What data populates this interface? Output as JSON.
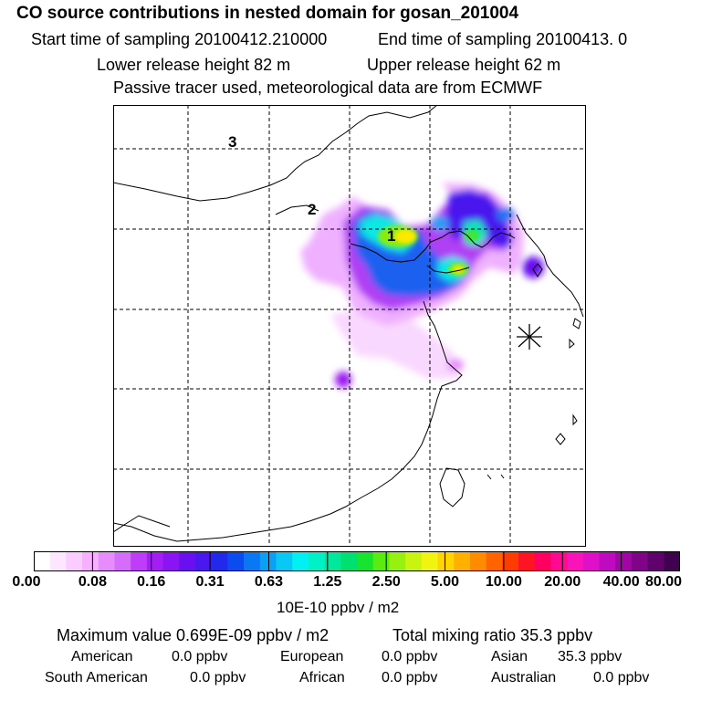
{
  "header": {
    "title": "CO  source contributions in nested domain for gosan_201004",
    "start_time": "Start time of sampling 20100412.210000",
    "end_time": "End time of sampling 20100413.     0",
    "lower_release": "Lower release height   82 m",
    "upper_release": "Upper release height   62 m",
    "tracer_note": "Passive tracer used, meteorological data are from ECMWF"
  },
  "map": {
    "labels": [
      {
        "id": "day1",
        "text": "1"
      },
      {
        "id": "day2",
        "text": "2"
      },
      {
        "id": "day3",
        "text": "3"
      }
    ],
    "receptor": "Gosan"
  },
  "colorbar": {
    "ticks": [
      "0.00",
      "0.08",
      "0.16",
      "0.31",
      "0.63",
      "1.25",
      "2.50",
      "5.00",
      "10.00",
      "20.00",
      "40.00",
      "80.00"
    ],
    "colors": [
      "#ffffff",
      "#fde6ff",
      "#fbccff",
      "#f6b0ff",
      "#e68cfc",
      "#d56cfa",
      "#bf3cf8",
      "#a31ef4",
      "#8a14f2",
      "#6a10f0",
      "#4a18ee",
      "#2228ec",
      "#0a4cf0",
      "#0a78f2",
      "#0aa0f4",
      "#0ac8f6",
      "#00f0f4",
      "#00f0c8",
      "#00e89c",
      "#00e070",
      "#16e430",
      "#5aec10",
      "#96f010",
      "#c8f410",
      "#f0f410",
      "#ffd400",
      "#ffb000",
      "#ff8c00",
      "#ff6400",
      "#ff3c00",
      "#ff1424",
      "#ff0060",
      "#ff0a90",
      "#f814b8",
      "#e010c8",
      "#c00ac0",
      "#a006a4",
      "#800488",
      "#60026c",
      "#400250"
    ],
    "units": "10E-10 ppbv / m2"
  },
  "summary": {
    "max_value": "Maximum value  0.699E-09 ppbv / m2",
    "total_mixing": "Total mixing ratio       35.3 ppbv",
    "regions": [
      {
        "name": "American",
        "value": "0.0 ppbv"
      },
      {
        "name": "European",
        "value": "0.0 ppbv"
      },
      {
        "name": "Asian",
        "value": "35.3 ppbv"
      },
      {
        "name": "South American",
        "value": "0.0 ppbv"
      },
      {
        "name": "African",
        "value": "0.0 ppbv"
      },
      {
        "name": "Australian",
        "value": "0.0 ppbv"
      }
    ]
  }
}
